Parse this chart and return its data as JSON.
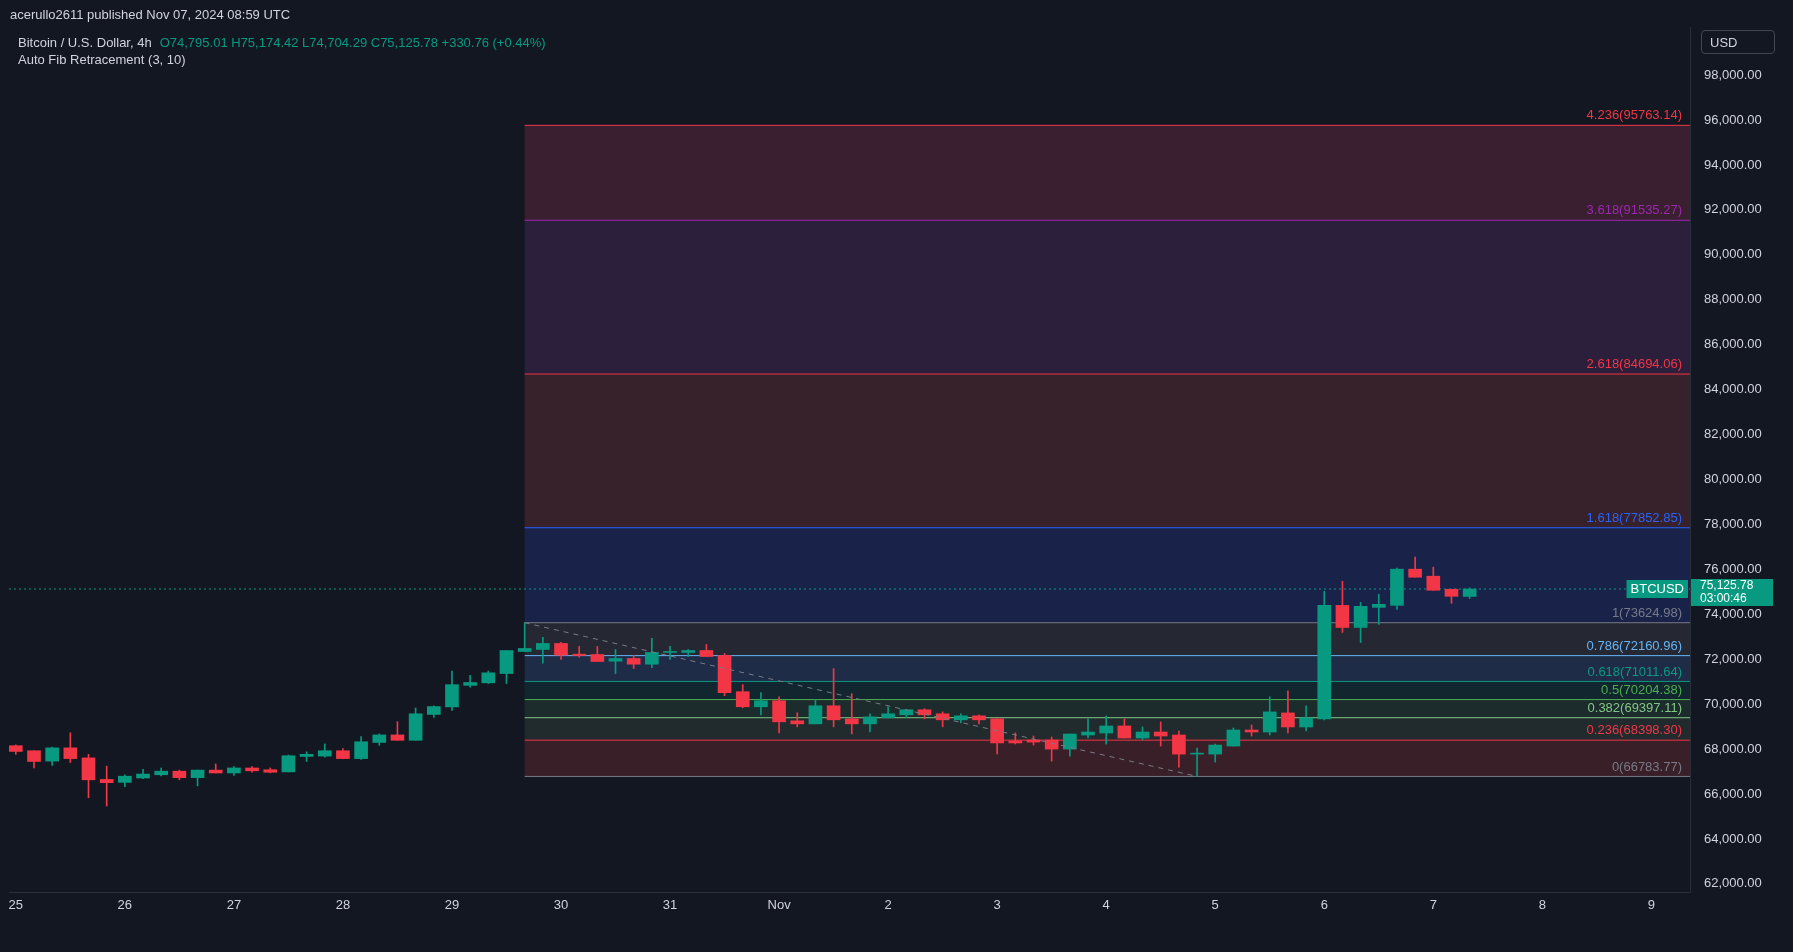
{
  "chart_data": {
    "type": "candlestick",
    "title": "Bitcoin / U.S. Dollar, 4h",
    "subtitle": "O74,795.01 H75,174.42 L74,704.29 C75,125.78 +330.76 (+0.44%)",
    "annotations": [
      "acerullo2611 published Nov 07, 2024 08:59 UTC",
      "Auto Fib Retracement (3, 10)",
      "75,125.78",
      "03:00:46",
      "USD"
    ],
    "x": [
      "2024-10-25T00:00",
      "2024-10-25T04:00",
      "2024-10-25T08:00",
      "2024-10-25T12:00",
      "2024-10-25T16:00",
      "2024-10-25T20:00",
      "2024-10-26T00:00",
      "2024-10-26T04:00",
      "2024-10-26T08:00",
      "2024-10-26T12:00",
      "2024-10-26T16:00",
      "2024-10-26T20:00",
      "2024-10-27T00:00",
      "2024-10-27T04:00",
      "2024-10-27T08:00",
      "2024-10-27T12:00",
      "2024-10-27T16:00",
      "2024-10-27T20:00",
      "2024-10-28T00:00",
      "2024-10-28T04:00",
      "2024-10-28T08:00",
      "2024-10-28T12:00",
      "2024-10-28T16:00",
      "2024-10-28T20:00",
      "2024-10-29T00:00",
      "2024-10-29T04:00",
      "2024-10-29T08:00",
      "2024-10-29T12:00",
      "2024-10-29T16:00",
      "2024-10-29T20:00",
      "2024-10-30T00:00",
      "2024-10-30T04:00",
      "2024-10-30T08:00",
      "2024-10-30T12:00",
      "2024-10-30T16:00",
      "2024-10-30T20:00",
      "2024-10-31T00:00",
      "2024-10-31T04:00",
      "2024-10-31T08:00",
      "2024-10-31T12:00",
      "2024-10-31T16:00",
      "2024-10-31T20:00",
      "2024-11-01T00:00",
      "2024-11-01T04:00",
      "2024-11-01T08:00",
      "2024-11-01T12:00",
      "2024-11-01T16:00",
      "2024-11-01T20:00",
      "2024-11-02T00:00",
      "2024-11-02T04:00",
      "2024-11-02T08:00",
      "2024-11-02T12:00",
      "2024-11-02T16:00",
      "2024-11-02T20:00",
      "2024-11-03T00:00",
      "2024-11-03T04:00",
      "2024-11-03T08:00",
      "2024-11-03T12:00",
      "2024-11-03T16:00",
      "2024-11-03T20:00",
      "2024-11-04T00:00",
      "2024-11-04T04:00",
      "2024-11-04T08:00",
      "2024-11-04T12:00",
      "2024-11-04T16:00",
      "2024-11-04T20:00",
      "2024-11-05T00:00",
      "2024-11-05T04:00",
      "2024-11-05T08:00",
      "2024-11-05T12:00",
      "2024-11-05T16:00",
      "2024-11-05T20:00",
      "2024-11-06T00:00",
      "2024-11-06T04:00",
      "2024-11-06T08:00",
      "2024-11-06T12:00",
      "2024-11-06T16:00",
      "2024-11-06T20:00",
      "2024-11-07T00:00",
      "2024-11-07T04:00",
      "2024-11-07T08:00"
    ],
    "ohlc": [
      [
        68152,
        68184,
        67769,
        67896
      ],
      [
        67928,
        67928,
        67161,
        67449
      ],
      [
        67465,
        68088,
        67273,
        68056
      ],
      [
        68056,
        68727,
        67401,
        67577
      ],
      [
        67609,
        67769,
        65835,
        66634
      ],
      [
        66650,
        67241,
        65468,
        66506
      ],
      [
        66520,
        66858,
        66330,
        66794
      ],
      [
        66714,
        67097,
        66682,
        66890
      ],
      [
        66858,
        67161,
        66810,
        67018
      ],
      [
        67018,
        67066,
        66634,
        66730
      ],
      [
        66730,
        67066,
        66362,
        67066
      ],
      [
        67066,
        67337,
        66938,
        66938
      ],
      [
        66938,
        67225,
        66826,
        67161
      ],
      [
        67161,
        67225,
        66970,
        67034
      ],
      [
        67082,
        67161,
        66938,
        66970
      ],
      [
        66986,
        67737,
        66986,
        67705
      ],
      [
        67673,
        67880,
        67449,
        67769
      ],
      [
        67689,
        68232,
        67641,
        67928
      ],
      [
        67928,
        68024,
        67577,
        67577
      ],
      [
        67577,
        68552,
        67545,
        68328
      ],
      [
        68296,
        68679,
        68168,
        68632
      ],
      [
        68632,
        69223,
        68392,
        68392
      ],
      [
        68392,
        69830,
        68392,
        69574
      ],
      [
        69542,
        69926,
        69414,
        69894
      ],
      [
        69878,
        71476,
        69718,
        70869
      ],
      [
        70837,
        71284,
        70757,
        70965
      ],
      [
        70949,
        71476,
        70917,
        71396
      ],
      [
        71364,
        72387,
        70917,
        72387
      ],
      [
        72345,
        73624.98,
        72345,
        72480
      ],
      [
        72435,
        72972,
        71823,
        72703
      ],
      [
        72703,
        72748,
        71987,
        72181
      ],
      [
        72226,
        72569,
        72092,
        72166
      ],
      [
        72211,
        72569,
        71898,
        71898
      ],
      [
        71913,
        72435,
        71361,
        72032
      ],
      [
        72032,
        72166,
        71585,
        71779
      ],
      [
        71779,
        72927,
        71630,
        72301
      ],
      [
        72301,
        72569,
        71987,
        72345
      ],
      [
        72301,
        72435,
        72122,
        72390
      ],
      [
        72390,
        72658,
        72122,
        72122
      ],
      [
        72166,
        72256,
        70377,
        70511
      ],
      [
        70556,
        70869,
        69840,
        69885
      ],
      [
        69885,
        70511,
        69527,
        70153
      ],
      [
        70153,
        70332,
        68721,
        69214
      ],
      [
        69259,
        69616,
        68990,
        69124
      ],
      [
        69124,
        70198,
        69124,
        69929
      ],
      [
        69929,
        71585,
        68990,
        69303
      ],
      [
        69348,
        70466,
        68677,
        69124
      ],
      [
        69124,
        69572,
        68766,
        69437
      ],
      [
        69393,
        69885,
        69393,
        69572
      ],
      [
        69527,
        69751,
        69393,
        69751
      ],
      [
        69751,
        69795,
        69348,
        69527
      ],
      [
        69572,
        69661,
        68990,
        69303
      ],
      [
        69303,
        69572,
        69169,
        69482
      ],
      [
        69482,
        69527,
        69124,
        69303
      ],
      [
        69348,
        69348,
        67782,
        68274
      ],
      [
        68364,
        68721,
        68229,
        68274
      ],
      [
        68404,
        68582,
        68180,
        68314
      ],
      [
        68404,
        68537,
        67464,
        68001
      ],
      [
        68001,
        68672,
        67688,
        68672
      ],
      [
        68627,
        69343,
        68493,
        68761
      ],
      [
        68717,
        69477,
        68224,
        69030
      ],
      [
        69030,
        69343,
        68493,
        68493
      ],
      [
        68493,
        68985,
        68404,
        68761
      ],
      [
        68761,
        69209,
        68135,
        68582
      ],
      [
        68627,
        68806,
        67195,
        67777
      ],
      [
        67777,
        68046,
        66783.77,
        67822
      ],
      [
        67777,
        68224,
        67419,
        68180
      ],
      [
        68135,
        68940,
        68135,
        68851
      ],
      [
        68851,
        69075,
        68582,
        68761
      ],
      [
        68761,
        70327,
        68627,
        69656
      ],
      [
        69611,
        70595,
        68717,
        68985
      ],
      [
        68985,
        69925,
        68806,
        69388
      ],
      [
        69343,
        75025,
        69298,
        74398
      ],
      [
        74398,
        75472,
        73191,
        73414
      ],
      [
        73414,
        74533,
        72743,
        74354
      ],
      [
        74309,
        74891,
        73549,
        74443
      ],
      [
        74398,
        76054,
        74219,
        76009
      ],
      [
        76009,
        76546,
        75651,
        75651
      ],
      [
        75696,
        76099,
        75070,
        75070
      ],
      [
        75114,
        75114,
        74488,
        74801
      ],
      [
        74795.01,
        75174.42,
        74704.29,
        75125.78
      ]
    ],
    "colors": [
      "#f23645",
      "#f23645",
      "#089981",
      "#f23645",
      "#f23645",
      "#f23645",
      "#089981",
      "#089981",
      "#089981",
      "#f23645",
      "#089981",
      "#f23645",
      "#089981",
      "#f23645",
      "#f23645",
      "#089981",
      "#089981",
      "#089981",
      "#f23645",
      "#089981",
      "#089981",
      "#f23645",
      "#089981",
      "#089981",
      "#089981",
      "#089981",
      "#089981",
      "#089981",
      "#089981",
      "#089981",
      "#f23645",
      "#f23645",
      "#f23645",
      "#089981",
      "#f23645",
      "#089981",
      "#089981",
      "#089981",
      "#f23645",
      "#f23645",
      "#f23645",
      "#089981",
      "#f23645",
      "#f23645",
      "#089981",
      "#f23645",
      "#f23645",
      "#089981",
      "#089981",
      "#089981",
      "#f23645",
      "#f23645",
      "#089981",
      "#f23645",
      "#f23645",
      "#f23645",
      "#f23645",
      "#f23645",
      "#089981",
      "#089981",
      "#089981",
      "#f23645",
      "#089981",
      "#f23645",
      "#f23645",
      "#089981",
      "#089981",
      "#089981",
      "#f23645",
      "#089981",
      "#f23645",
      "#089981",
      "#089981",
      "#f23645",
      "#089981",
      "#089981",
      "#089981",
      "#f23645",
      "#f23645",
      "#f23645",
      "#089981"
    ],
    "series": [
      {
        "type": "line",
        "x": [
          "2024-10-29T16:00",
          "2024-11-04T20:00"
        ],
        "values": [
          73624.98,
          66783.77
        ],
        "color": "#787b86",
        "line_style": "dashed"
      }
    ],
    "xlim": [
      "2024-10-24T22:30",
      "2024-11-09T08:30"
    ],
    "xticks": [
      {
        "value": "2024-10-25",
        "label": "25"
      },
      {
        "value": "2024-10-26",
        "label": "26"
      },
      {
        "value": "2024-10-27",
        "label": "27"
      },
      {
        "value": "2024-10-28",
        "label": "28"
      },
      {
        "value": "2024-10-29",
        "label": "29"
      },
      {
        "value": "2024-10-30",
        "label": "30"
      },
      {
        "value": "2024-10-31",
        "label": "31"
      },
      {
        "value": "2024-11-01",
        "label": "Nov"
      },
      {
        "value": "2024-11-02",
        "label": "2"
      },
      {
        "value": "2024-11-03",
        "label": "3"
      },
      {
        "value": "2024-11-04",
        "label": "4"
      },
      {
        "value": "2024-11-05",
        "label": "5"
      },
      {
        "value": "2024-11-06",
        "label": "6"
      },
      {
        "value": "2024-11-07",
        "label": "7"
      },
      {
        "value": "2024-11-08",
        "label": "8"
      },
      {
        "value": "2024-11-09",
        "label": "9"
      }
    ],
    "ylim": [
      61640,
      100140
    ],
    "yticks": [
      {
        "value": 62000,
        "label": "62,000.00"
      },
      {
        "value": 64000,
        "label": "64,000.00"
      },
      {
        "value": 66000,
        "label": "66,000.00"
      },
      {
        "value": 68000,
        "label": "68,000.00"
      },
      {
        "value": 70000,
        "label": "70,000.00"
      },
      {
        "value": 72000,
        "label": "72,000.00"
      },
      {
        "value": 74000,
        "label": "74,000.00"
      },
      {
        "value": 76000,
        "label": "76,000.00"
      },
      {
        "value": 78000,
        "label": "78,000.00"
      },
      {
        "value": 80000,
        "label": "80,000.00"
      },
      {
        "value": 82000,
        "label": "82,000.00"
      },
      {
        "value": 84000,
        "label": "84,000.00"
      },
      {
        "value": 86000,
        "label": "86,000.00"
      },
      {
        "value": 88000,
        "label": "88,000.00"
      },
      {
        "value": 90000,
        "label": "90,000.00"
      },
      {
        "value": 92000,
        "label": "92,000.00"
      },
      {
        "value": 94000,
        "label": "94,000.00"
      },
      {
        "value": 96000,
        "label": "96,000.00"
      },
      {
        "value": 98000,
        "label": "98,000.00"
      }
    ],
    "ref_lines": [
      {
        "axis": "y",
        "value": 95763.14,
        "label": "4.236(95763.14)",
        "color": "#f23645"
      },
      {
        "axis": "y",
        "value": 91535.27,
        "label": "3.618(91535.27)",
        "color": "#9c27b0"
      },
      {
        "axis": "y",
        "value": 84694.06,
        "label": "2.618(84694.06)",
        "color": "#f23645"
      },
      {
        "axis": "y",
        "value": 77852.85,
        "label": "1.618(77852.85)",
        "color": "#2962ff"
      },
      {
        "axis": "y",
        "value": 73624.98,
        "label": "1(73624.98)",
        "color": "#787b86"
      },
      {
        "axis": "y",
        "value": 72160.96,
        "label": "0.786(72160.96)",
        "color": "#64b5f6"
      },
      {
        "axis": "y",
        "value": 71011.64,
        "label": "0.618(71011.64)",
        "color": "#089981"
      },
      {
        "axis": "y",
        "value": 70204.38,
        "label": "0.5(70204.38)",
        "color": "#4caf50"
      },
      {
        "axis": "y",
        "value": 69397.11,
        "label": "0.382(69397.11)",
        "color": "#81c784"
      },
      {
        "axis": "y",
        "value": 68398.3,
        "label": "0.236(68398.30)",
        "color": "#f23645"
      },
      {
        "axis": "y",
        "value": 66783.77,
        "label": "0(66783.77)",
        "color": "#787b86"
      },
      {
        "axis": "y",
        "value": 75125.78,
        "label": "BTCUSD",
        "color": "#089981",
        "line_style": "dotted"
      }
    ],
    "bands": [
      {
        "axis": "y",
        "from": 91535.27,
        "to": 95763.14,
        "color": "#3a1f30"
      },
      {
        "axis": "y",
        "from": 84694.06,
        "to": 91535.27,
        "color": "#2b1f3c"
      },
      {
        "axis": "y",
        "from": 77852.85,
        "to": 84694.06,
        "color": "#37212a"
      },
      {
        "axis": "y",
        "from": 73624.98,
        "to": 77852.85,
        "color": "#19234a"
      },
      {
        "axis": "y",
        "from": 72160.96,
        "to": 73624.98,
        "color": "#252733"
      },
      {
        "axis": "y",
        "from": 71011.64,
        "to": 72160.96,
        "color": "#1f2c47"
      },
      {
        "axis": "y",
        "from": 70204.38,
        "to": 71011.64,
        "color": "#12262f"
      },
      {
        "axis": "y",
        "from": 69397.11,
        "to": 70204.38,
        "color": "#1c2b2c"
      },
      {
        "axis": "y",
        "from": 68398.3,
        "to": 69397.11,
        "color": "#212b2e"
      },
      {
        "axis": "y",
        "from": 66783.77,
        "to": 68398.3,
        "color": "#381f28"
      }
    ],
    "grid": false,
    "legend": false
  }
}
